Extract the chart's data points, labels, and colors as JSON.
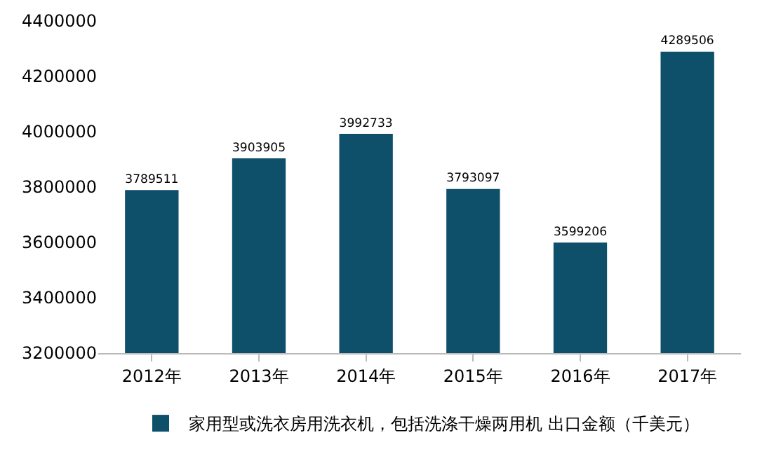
{
  "chart_data": {
    "type": "bar",
    "categories": [
      "2012年",
      "2013年",
      "2014年",
      "2015年",
      "2016年",
      "2017年"
    ],
    "series": [
      {
        "name": "家用型或洗衣房用洗衣机，包括洗涤干燥两用机 出口金额（千美元）",
        "color": "#0e4f6a",
        "values": [
          3789511,
          3903905,
          3992733,
          3793097,
          3599206,
          4289506
        ]
      }
    ],
    "ylim": [
      3200000,
      4400000
    ],
    "yticks": [
      3200000,
      3400000,
      3600000,
      3800000,
      4000000,
      4200000,
      4400000
    ],
    "data_labels": true,
    "grid": false,
    "legend": "bottom"
  }
}
